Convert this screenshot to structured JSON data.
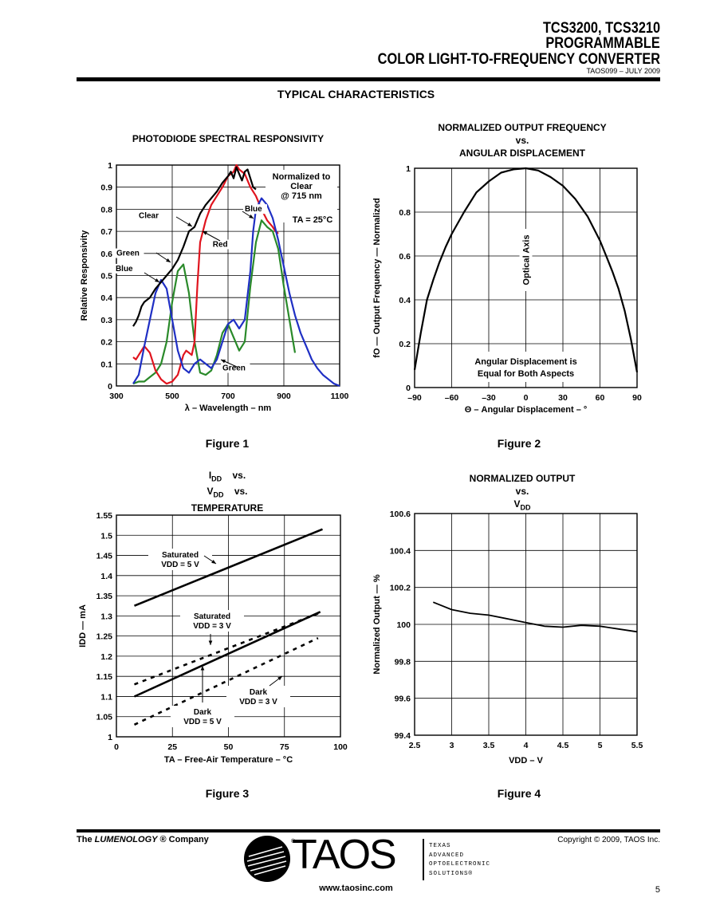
{
  "header": {
    "line1": "TCS3200, TCS3210",
    "line2": "PROGRAMMABLE",
    "line3": "COLOR LIGHT-TO-FREQUENCY CONVERTER",
    "doc": "TAOS099 – JULY 2009"
  },
  "section_title": "TYPICAL CHARACTERISTICS",
  "figures": {
    "fig1": "Figure 1",
    "fig2": "Figure 2",
    "fig3": "Figure 3",
    "fig4": "Figure 4"
  },
  "colors": {
    "red": "#e0141e",
    "blue": "#1f2fc4",
    "green": "#2a8a2a",
    "black": "#000000"
  },
  "footer": {
    "company_prefix": "The ",
    "company_brand": "LUMENOLOGY",
    "company_suffix": " ® Company",
    "copyright": "Copyright © 2009, TAOS Inc.",
    "url": "www.taosinc.com",
    "page": "5",
    "logo_text": "TAOS",
    "logo_tagline": [
      "TEXAS",
      "ADVANCED",
      "OPTOELECTRONIC",
      "SOLUTIONS®"
    ]
  },
  "chart_data": [
    {
      "type": "line",
      "title": "PHOTODIODE SPECTRAL RESPONSIVITY",
      "xlabel": "λ – Wavelength – nm",
      "ylabel": "Relative Responsivity",
      "xlim": [
        300,
        1100
      ],
      "ylim": [
        0,
        1
      ],
      "xticks": [
        "300",
        "500",
        "700",
        "900",
        "1100"
      ],
      "xtick_values": [
        300,
        500,
        700,
        900,
        1100
      ],
      "yticks": [
        "0",
        "0.1",
        "0.2",
        "0.3",
        "0.4",
        "0.5",
        "0.6",
        "0.7",
        "0.8",
        "0.9",
        "1"
      ],
      "ytick_values": [
        0,
        0.1,
        0.2,
        0.3,
        0.4,
        0.5,
        0.6,
        0.7,
        0.8,
        0.9,
        1
      ],
      "grid": true,
      "annotations": [
        "Normalized to",
        "Clear",
        "@ 715 nm",
        "TA = 25°C"
      ],
      "series": [
        {
          "name": "Clear",
          "color_key": "black",
          "x": [
            360,
            370,
            380,
            390,
            400,
            420,
            440,
            460,
            480,
            500,
            520,
            540,
            560,
            580,
            600,
            620,
            640,
            660,
            680,
            700,
            710,
            720,
            730,
            740,
            750,
            760,
            770,
            780,
            790,
            800
          ],
          "y": [
            0.27,
            0.29,
            0.32,
            0.36,
            0.38,
            0.4,
            0.44,
            0.47,
            0.5,
            0.53,
            0.57,
            0.63,
            0.7,
            0.72,
            0.78,
            0.82,
            0.85,
            0.88,
            0.92,
            0.95,
            0.97,
            0.94,
            0.99,
            0.96,
            0.93,
            0.97,
            0.98,
            0.94,
            0.9,
            0.89
          ]
        },
        {
          "name": "Red",
          "color_key": "red",
          "x": [
            360,
            370,
            380,
            400,
            420,
            440,
            460,
            480,
            500,
            520,
            540,
            550,
            560,
            570,
            580,
            590,
            600,
            620,
            640,
            660,
            680,
            700,
            720,
            730,
            740,
            760,
            780,
            800,
            820,
            840,
            860,
            870,
            880
          ],
          "y": [
            0.13,
            0.12,
            0.14,
            0.18,
            0.15,
            0.07,
            0.03,
            0.01,
            0.02,
            0.05,
            0.14,
            0.16,
            0.15,
            0.14,
            0.2,
            0.45,
            0.65,
            0.75,
            0.82,
            0.86,
            0.9,
            0.95,
            0.97,
            1.0,
            0.98,
            0.96,
            0.9,
            0.86,
            0.8,
            0.75,
            0.72,
            0.7,
            0.69
          ]
        },
        {
          "name": "Green",
          "color_key": "green",
          "x": [
            360,
            380,
            400,
            420,
            440,
            460,
            480,
            500,
            520,
            540,
            560,
            580,
            600,
            620,
            640,
            660,
            680,
            700,
            720,
            740,
            760,
            780,
            800,
            820,
            840,
            860,
            880,
            900,
            920,
            940
          ],
          "y": [
            0.01,
            0.02,
            0.02,
            0.04,
            0.06,
            0.1,
            0.2,
            0.38,
            0.52,
            0.55,
            0.42,
            0.2,
            0.06,
            0.05,
            0.07,
            0.14,
            0.24,
            0.28,
            0.22,
            0.16,
            0.2,
            0.45,
            0.65,
            0.75,
            0.72,
            0.7,
            0.62,
            0.45,
            0.3,
            0.15
          ]
        },
        {
          "name": "Blue",
          "color_key": "blue",
          "x": [
            360,
            380,
            400,
            420,
            440,
            460,
            480,
            500,
            520,
            540,
            560,
            580,
            600,
            620,
            640,
            660,
            680,
            700,
            720,
            740,
            760,
            780,
            790,
            800,
            820,
            840,
            860,
            880,
            900,
            920,
            940,
            960,
            980,
            1000,
            1020,
            1040,
            1060,
            1080,
            1100
          ],
          "y": [
            0.01,
            0.05,
            0.18,
            0.3,
            0.42,
            0.48,
            0.44,
            0.3,
            0.16,
            0.08,
            0.06,
            0.1,
            0.12,
            0.1,
            0.08,
            0.12,
            0.2,
            0.28,
            0.3,
            0.26,
            0.3,
            0.52,
            0.7,
            0.8,
            0.85,
            0.82,
            0.76,
            0.66,
            0.54,
            0.42,
            0.32,
            0.24,
            0.18,
            0.12,
            0.08,
            0.05,
            0.03,
            0.01,
            0.0
          ]
        }
      ],
      "labels": [
        {
          "text": "Clear",
          "x": 380,
          "y": 0.76
        },
        {
          "text": "Blue",
          "x": 760,
          "y": 0.79
        },
        {
          "text": "Red",
          "x": 645,
          "y": 0.63
        },
        {
          "text": "Green",
          "x": 300,
          "y": 0.59
        },
        {
          "text": "Blue",
          "x": 297,
          "y": 0.52
        },
        {
          "text": "Green",
          "x": 680,
          "y": 0.07
        }
      ]
    },
    {
      "type": "line",
      "title": "NORMALIZED OUTPUT FREQUENCY vs. ANGULAR DISPLACEMENT",
      "xlabel": "Θ – Angular Displacement – °",
      "ylabel": "fO — Output Frequency — Normalized",
      "xlim": [
        -90,
        90
      ],
      "ylim": [
        0,
        1
      ],
      "xticks": [
        "–90",
        "–60",
        "–30",
        "0",
        "30",
        "60",
        "90"
      ],
      "xtick_values": [
        -90,
        -60,
        -30,
        0,
        30,
        60,
        90
      ],
      "yticks": [
        "0",
        "0.2",
        "0.4",
        "0.6",
        "0.8",
        "1"
      ],
      "ytick_values": [
        0,
        0.2,
        0.4,
        0.6,
        0.8,
        1
      ],
      "grid": true,
      "annotations": [
        "Optical Axis",
        "Angular Displacement is",
        "Equal for Both Aspects"
      ],
      "series": [
        {
          "name": "",
          "color_key": "black",
          "x": [
            -90,
            -85,
            -80,
            -75,
            -70,
            -65,
            -60,
            -50,
            -40,
            -30,
            -20,
            -10,
            0,
            10,
            20,
            30,
            40,
            50,
            60,
            65,
            70,
            75,
            80,
            85,
            90
          ],
          "y": [
            0.08,
            0.25,
            0.4,
            0.49,
            0.57,
            0.64,
            0.7,
            0.8,
            0.89,
            0.94,
            0.98,
            0.995,
            1.0,
            0.99,
            0.96,
            0.92,
            0.86,
            0.78,
            0.67,
            0.6,
            0.53,
            0.45,
            0.35,
            0.22,
            0.07
          ]
        }
      ]
    },
    {
      "type": "line",
      "title": "IDD vs. VDD vs. TEMPERATURE",
      "xlabel": "TA – Free-Air Temperature – °C",
      "ylabel": "IDD — mA",
      "xlim": [
        0,
        100
      ],
      "ylim": [
        1,
        1.55
      ],
      "xticks": [
        "0",
        "25",
        "50",
        "75",
        "100"
      ],
      "xtick_values": [
        0,
        25,
        50,
        75,
        100
      ],
      "yticks": [
        "1",
        "1.05",
        "1.1",
        "1.15",
        "1.2",
        "1.25",
        "1.3",
        "1.35",
        "1.4",
        "1.45",
        "1.5",
        "1.55"
      ],
      "ytick_values": [
        1,
        1.05,
        1.1,
        1.15,
        1.2,
        1.25,
        1.3,
        1.35,
        1.4,
        1.45,
        1.5,
        1.55
      ],
      "grid": true,
      "series": [
        {
          "name": "Saturated VDD = 5 V",
          "style": "solid",
          "x": [
            8,
            92
          ],
          "y": [
            1.325,
            1.515
          ]
        },
        {
          "name": "Saturated VDD = 3 V",
          "style": "dashed",
          "x": [
            8,
            92
          ],
          "y": [
            1.13,
            1.31
          ]
        },
        {
          "name": "Dark VDD = 3 V",
          "style": "solid",
          "x": [
            8,
            91
          ],
          "y": [
            1.1,
            1.31
          ]
        },
        {
          "name": "Dark VDD = 5 V",
          "style": "dashed",
          "x": [
            8,
            90
          ],
          "y": [
            1.03,
            1.245
          ]
        }
      ]
    },
    {
      "type": "line",
      "title": "NORMALIZED OUTPUT vs. VDD",
      "xlabel": "VDD – V",
      "ylabel": "Normalized Output — %",
      "xlim": [
        2.5,
        5.5
      ],
      "ylim": [
        99.4,
        100.6
      ],
      "xticks": [
        "2.5",
        "3",
        "3.5",
        "4",
        "4.5",
        "5",
        "5.5"
      ],
      "xtick_values": [
        2.5,
        3,
        3.5,
        4,
        4.5,
        5,
        5.5
      ],
      "yticks": [
        "99.4",
        "99.6",
        "99.8",
        "100",
        "100.2",
        "100.4",
        "100.6"
      ],
      "ytick_values": [
        99.4,
        99.6,
        99.8,
        100,
        100.2,
        100.4,
        100.6
      ],
      "grid": true,
      "series": [
        {
          "name": "",
          "color_key": "black",
          "x": [
            2.75,
            3.0,
            3.25,
            3.5,
            3.75,
            4.0,
            4.25,
            4.5,
            4.75,
            5.0,
            5.25,
            5.5
          ],
          "y": [
            100.12,
            100.08,
            100.06,
            100.05,
            100.03,
            100.01,
            99.99,
            99.985,
            99.995,
            99.99,
            99.975,
            99.96
          ]
        }
      ]
    }
  ]
}
